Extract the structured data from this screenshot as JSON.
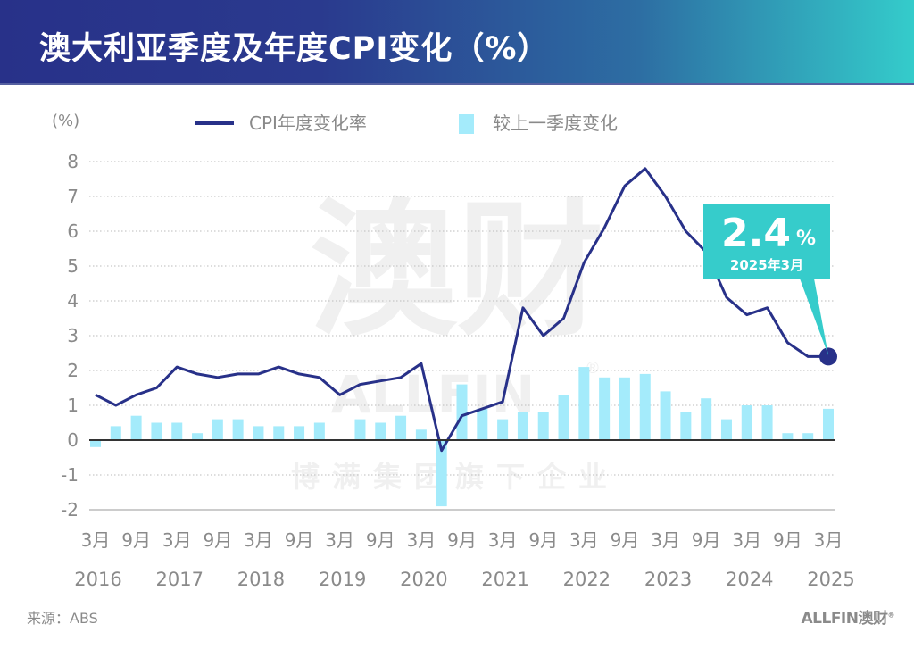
{
  "header": {
    "title": "澳大利亚季度及年度CPI变化（%）"
  },
  "footer": {
    "source": "来源：ABS",
    "logo": "ALLFIN澳财",
    "logo_mark": "®"
  },
  "watermark": {
    "main": "澳财",
    "brand": "ALLFIN",
    "mark": "®",
    "sub": "博满集团旗下企业"
  },
  "callout": {
    "value": "2.4",
    "unit": "%",
    "date": "2025年3月"
  },
  "colors": {
    "line": "#283189",
    "bar": "#a4ebfb",
    "callout": "#36cccb",
    "header_start": "#283189",
    "header_end": "#34cccb"
  },
  "chart_data": {
    "type": "bar+line",
    "title": "澳大利亚季度及年度CPI变化（%）",
    "ylabel": "(%)",
    "ylim": [
      -2,
      8
    ],
    "yticks": [
      "-2",
      "-1",
      "0",
      "1",
      "2",
      "3",
      "4",
      "5",
      "6",
      "7",
      "8"
    ],
    "grid": true,
    "legend_position": "top",
    "x_tick_labels": [
      "3月",
      "9月",
      "3月",
      "9月",
      "3月",
      "9月",
      "3月",
      "9月",
      "3月",
      "9月",
      "3月",
      "9月",
      "3月",
      "9月",
      "3月",
      "9月",
      "3月",
      "9月",
      "3月"
    ],
    "year_labels": [
      "2016",
      "2017",
      "2018",
      "2019",
      "2020",
      "2021",
      "2022",
      "2023",
      "2024",
      "2025"
    ],
    "x": [
      "2016-03",
      "2016-06",
      "2016-09",
      "2016-12",
      "2017-03",
      "2017-06",
      "2017-09",
      "2017-12",
      "2018-03",
      "2018-06",
      "2018-09",
      "2018-12",
      "2019-03",
      "2019-06",
      "2019-09",
      "2019-12",
      "2020-03",
      "2020-06",
      "2020-09",
      "2020-12",
      "2021-03",
      "2021-06",
      "2021-09",
      "2021-12",
      "2022-03",
      "2022-06",
      "2022-09",
      "2022-12",
      "2023-03",
      "2023-06",
      "2023-09",
      "2023-12",
      "2024-03",
      "2024-06",
      "2024-09",
      "2024-12",
      "2025-03"
    ],
    "series": [
      {
        "name": "CPI年度变化率",
        "type": "line",
        "values": [
          1.3,
          1.0,
          1.3,
          1.5,
          2.1,
          1.9,
          1.8,
          1.9,
          1.9,
          2.1,
          1.9,
          1.8,
          1.3,
          1.6,
          1.7,
          1.8,
          2.2,
          -0.3,
          0.7,
          0.9,
          1.1,
          3.8,
          3.0,
          3.5,
          5.1,
          6.1,
          7.3,
          7.8,
          7.0,
          6.0,
          5.4,
          4.1,
          3.6,
          3.8,
          2.8,
          2.4,
          2.4
        ]
      },
      {
        "name": "较上一季度变化",
        "type": "bar",
        "values": [
          -0.2,
          0.4,
          0.7,
          0.5,
          0.5,
          0.2,
          0.6,
          0.6,
          0.4,
          0.4,
          0.4,
          0.5,
          0.0,
          0.6,
          0.5,
          0.7,
          0.3,
          -1.9,
          1.6,
          0.9,
          0.6,
          0.8,
          0.8,
          1.3,
          2.1,
          1.8,
          1.8,
          1.9,
          1.4,
          0.8,
          1.2,
          0.6,
          1.0,
          1.0,
          0.2,
          0.2,
          0.9
        ]
      }
    ]
  }
}
